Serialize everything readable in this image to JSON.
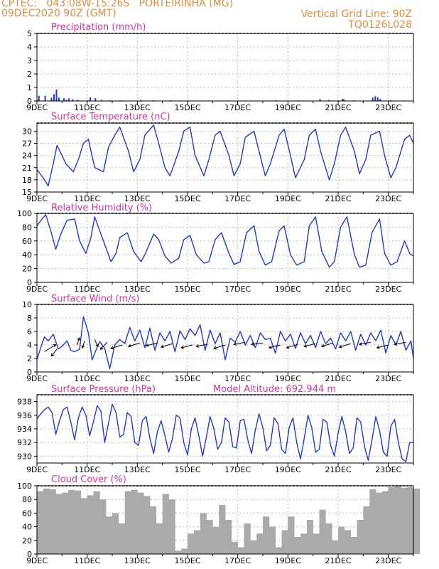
{
  "header": {
    "line1_left": "CPTEC:   043:08W-15:26S   PORTEIRINHA (MG)",
    "line2_left": "09DEC2020 90Z (GMT)",
    "line2_right": "Vertical Grid Line: 90Z",
    "line3_right": "TQ0126L028"
  },
  "colors": {
    "header": "#e98a3a",
    "title": "#e0309a",
    "series": "#1f37e0",
    "precip": "#1f37e0",
    "cloud": "#aaaaaa",
    "grid": "#b9b9b9"
  },
  "x_ticks": [
    "9DEC",
    "11DEC",
    "13DEC",
    "15DEC",
    "17DEC",
    "19DEC",
    "21DEC",
    "23DEC"
  ],
  "chart_data": [
    {
      "type": "bar",
      "title": "Precipitation (mm/h)",
      "ylim": [
        0,
        5
      ],
      "yticks": [
        0,
        1,
        2,
        3,
        4,
        5
      ],
      "x_range_days": [
        0,
        15
      ],
      "series": [
        {
          "x": [
            0.05,
            0.3,
            0.55,
            0.65,
            0.75,
            0.85,
            1.05,
            1.15,
            1.25,
            1.4,
            1.6,
            2.0,
            2.1,
            2.3,
            2.55,
            2.9,
            3.3,
            4.1,
            4.6,
            5.3,
            6.0,
            7.6,
            8.3,
            9.5,
            10.4,
            11.25,
            11.6,
            12.0,
            12.15,
            12.2,
            12.6,
            13.35,
            13.45,
            13.55,
            13.65,
            14.05,
            14.6
          ],
          "y": [
            0.38,
            0.38,
            0.25,
            0.5,
            0.85,
            0.25,
            0.2,
            0.1,
            0.2,
            0.12,
            0.08,
            0.06,
            0.28,
            0.22,
            0.1,
            0.05,
            0.05,
            0.06,
            0.05,
            0.05,
            0.04,
            0.04,
            0.04,
            0.05,
            0.05,
            0.14,
            0.08,
            0.05,
            0.16,
            0.12,
            0.05,
            0.25,
            0.35,
            0.28,
            0.15,
            0.05,
            0.04
          ]
        }
      ]
    },
    {
      "type": "line",
      "title": "Surface Temperature (nC)",
      "ylim": [
        15,
        32
      ],
      "yticks": [
        15,
        18,
        21,
        24,
        27,
        30
      ],
      "x_range_days": [
        0,
        15
      ],
      "series": [
        {
          "x": [
            0,
            0.25,
            0.45,
            0.65,
            0.8,
            1.0,
            1.15,
            1.45,
            1.65,
            1.85,
            2.05,
            2.3,
            2.65,
            2.85,
            3.1,
            3.3,
            3.65,
            3.85,
            4.1,
            4.3,
            4.65,
            4.85,
            5.1,
            5.3,
            5.65,
            5.85,
            6.1,
            6.3,
            6.65,
            6.85,
            7.1,
            7.3,
            7.65,
            7.85,
            8.1,
            8.3,
            8.65,
            8.85,
            9.1,
            9.3,
            9.65,
            9.85,
            10.1,
            10.3,
            10.65,
            10.85,
            11.1,
            11.3,
            11.65,
            11.85,
            12.1,
            12.3,
            12.65,
            12.85,
            13.1,
            13.3,
            13.65,
            13.85,
            14.1,
            14.3,
            14.65,
            14.85,
            15.0
          ],
          "y": [
            20.5,
            18.5,
            16.5,
            22,
            26.5,
            24,
            22,
            20,
            23,
            27,
            28,
            21,
            20,
            26,
            29,
            31,
            25,
            20,
            23,
            29,
            31.5,
            27,
            21,
            19,
            25,
            30,
            31,
            24,
            19,
            23,
            29,
            30,
            24,
            19,
            22,
            28.5,
            30,
            25,
            19,
            22,
            29,
            30.5,
            24,
            18.5,
            23,
            29,
            30.5,
            25,
            18,
            22,
            29,
            31,
            25,
            19.5,
            23,
            29,
            30,
            24,
            18.5,
            21,
            28,
            29,
            27
          ]
        }
      ]
    },
    {
      "type": "line",
      "title": "Relative Humidity (%)",
      "ylim": [
        0,
        100
      ],
      "yticks": [
        0,
        20,
        40,
        60,
        80,
        100
      ],
      "x_range_days": [
        0,
        15
      ],
      "series": [
        {
          "x": [
            0,
            0.2,
            0.35,
            0.55,
            0.75,
            0.95,
            1.2,
            1.5,
            1.7,
            1.95,
            2.15,
            2.3,
            2.7,
            2.95,
            3.15,
            3.3,
            3.6,
            3.85,
            4.15,
            4.3,
            4.65,
            4.85,
            5.1,
            5.35,
            5.65,
            5.85,
            6.1,
            6.35,
            6.65,
            6.85,
            7.1,
            7.35,
            7.65,
            7.85,
            8.1,
            8.35,
            8.65,
            8.85,
            9.1,
            9.35,
            9.65,
            9.85,
            10.1,
            10.35,
            10.65,
            10.85,
            11.1,
            11.35,
            11.65,
            11.85,
            12.1,
            12.35,
            12.65,
            12.85,
            13.1,
            13.35,
            13.65,
            13.85,
            14.1,
            14.35,
            14.65,
            14.85,
            15.0
          ],
          "y": [
            82,
            92,
            98,
            75,
            48,
            70,
            90,
            92,
            60,
            42,
            65,
            95,
            55,
            30,
            42,
            65,
            72,
            45,
            30,
            40,
            70,
            62,
            38,
            28,
            35,
            62,
            68,
            40,
            28,
            30,
            62,
            72,
            42,
            26,
            30,
            72,
            82,
            45,
            25,
            30,
            75,
            82,
            40,
            25,
            30,
            82,
            95,
            45,
            22,
            30,
            80,
            95,
            40,
            22,
            25,
            72,
            92,
            42,
            25,
            30,
            60,
            42,
            38
          ]
        }
      ]
    },
    {
      "type": "line",
      "title": "Surface Wind (m/s)",
      "ylim": [
        0,
        10
      ],
      "yticks": [
        0,
        2,
        4,
        6,
        8,
        10
      ],
      "x_range_days": [
        0,
        15
      ],
      "series": [
        {
          "x": [
            0,
            0.15,
            0.3,
            0.45,
            0.65,
            0.85,
            1.0,
            1.2,
            1.35,
            1.5,
            1.7,
            1.85,
            2.05,
            2.2,
            2.35,
            2.5,
            2.7,
            2.9,
            3.1,
            3.3,
            3.5,
            3.7,
            3.9,
            4.1,
            4.3,
            4.5,
            4.7,
            4.9,
            5.1,
            5.3,
            5.5,
            5.7,
            5.9,
            6.1,
            6.3,
            6.5,
            6.7,
            6.9,
            7.1,
            7.3,
            7.5,
            7.7,
            7.9,
            8.1,
            8.3,
            8.5,
            8.7,
            8.9,
            9.1,
            9.3,
            9.5,
            9.7,
            9.9,
            10.1,
            10.3,
            10.5,
            10.7,
            10.9,
            11.1,
            11.3,
            11.5,
            11.7,
            11.9,
            12.1,
            12.3,
            12.5,
            12.7,
            12.9,
            13.1,
            13.3,
            13.5,
            13.7,
            13.9,
            14.1,
            14.3,
            14.5,
            14.7,
            14.9,
            15.0
          ],
          "y": [
            1.8,
            3.6,
            5.2,
            4.6,
            5.6,
            3.4,
            3.8,
            4.6,
            3.2,
            3.0,
            3.4,
            8.2,
            5.8,
            1.8,
            3.2,
            4.5,
            3.5,
            0.5,
            4.0,
            4.8,
            4.2,
            6.6,
            4.6,
            6.2,
            3.6,
            6.5,
            3.2,
            5.8,
            4.6,
            6.0,
            3.0,
            6.1,
            4.8,
            6.4,
            5.4,
            7.0,
            3.2,
            6.2,
            4.2,
            5.8,
            1.8,
            5.0,
            4.4,
            6.0,
            4.0,
            5.4,
            3.6,
            5.8,
            4.8,
            5.0,
            2.8,
            6.0,
            4.6,
            5.6,
            3.5,
            5.8,
            4.2,
            5.4,
            3.6,
            6.0,
            4.2,
            5.0,
            3.4,
            5.8,
            4.6,
            6.0,
            3.2,
            5.6,
            4.0,
            5.8,
            4.6,
            6.2,
            2.8,
            5.4,
            4.0,
            6.0,
            3.2,
            4.6,
            2.0
          ]
        }
      ]
    },
    {
      "type": "line",
      "title": "Surface Pressure (hPa)",
      "annotation": "Model Altitude: 692.944 m",
      "ylim": [
        929,
        939
      ],
      "yticks": [
        930,
        932,
        934,
        936,
        938
      ],
      "x_range_days": [
        0,
        15
      ],
      "series": [
        {
          "x": [
            0,
            0.15,
            0.3,
            0.45,
            0.6,
            0.75,
            0.9,
            1.05,
            1.2,
            1.35,
            1.5,
            1.65,
            1.8,
            1.95,
            2.1,
            2.25,
            2.4,
            2.55,
            2.7,
            2.85,
            3.0,
            3.15,
            3.3,
            3.45,
            3.6,
            3.75,
            3.9,
            4.05,
            4.2,
            4.35,
            4.5,
            4.65,
            4.8,
            4.95,
            5.1,
            5.25,
            5.4,
            5.55,
            5.7,
            5.85,
            6.0,
            6.15,
            6.3,
            6.45,
            6.6,
            6.75,
            6.9,
            7.05,
            7.2,
            7.35,
            7.5,
            7.65,
            7.8,
            7.95,
            8.1,
            8.25,
            8.4,
            8.55,
            8.7,
            8.85,
            9.0,
            9.15,
            9.3,
            9.45,
            9.6,
            9.75,
            9.9,
            10.05,
            10.2,
            10.35,
            10.5,
            10.65,
            10.8,
            10.95,
            11.1,
            11.25,
            11.4,
            11.55,
            11.7,
            11.85,
            12.0,
            12.15,
            12.3,
            12.45,
            12.6,
            12.75,
            12.9,
            13.05,
            13.2,
            13.35,
            13.5,
            13.65,
            13.8,
            13.95,
            14.1,
            14.25,
            14.4,
            14.55,
            14.7,
            14.85,
            15.0
          ],
          "y": [
            935.5,
            936.2,
            936.8,
            937.2,
            936.4,
            933.2,
            935.2,
            936.8,
            937.2,
            935.0,
            932.4,
            935.6,
            937.2,
            936.0,
            933.0,
            935.0,
            937.4,
            936.6,
            932.0,
            934.8,
            937.6,
            936.4,
            932.8,
            933.2,
            936.4,
            935.8,
            932.0,
            931.6,
            935.2,
            935.8,
            932.6,
            930.4,
            933.6,
            935.2,
            933.0,
            930.6,
            932.6,
            936.0,
            935.6,
            932.0,
            930.2,
            934.0,
            935.6,
            933.0,
            930.0,
            932.8,
            935.8,
            934.0,
            931.0,
            932.0,
            935.6,
            935.0,
            931.4,
            931.2,
            935.2,
            935.4,
            932.4,
            930.4,
            933.8,
            936.2,
            934.2,
            930.8,
            931.6,
            935.6,
            934.8,
            931.0,
            930.4,
            934.2,
            935.6,
            932.0,
            929.6,
            932.6,
            936.0,
            934.2,
            930.6,
            931.0,
            935.4,
            935.0,
            931.6,
            930.0,
            933.4,
            935.8,
            933.6,
            930.4,
            931.2,
            935.6,
            935.0,
            931.4,
            929.4,
            932.4,
            935.8,
            933.8,
            930.6,
            930.0,
            934.4,
            935.4,
            932.0,
            929.6,
            929.2,
            932.0,
            932.0
          ]
        }
      ]
    },
    {
      "type": "bar",
      "title": "Cloud Cover (%)",
      "ylim": [
        0,
        100
      ],
      "yticks": [
        0,
        20,
        40,
        60,
        80,
        100
      ],
      "x_range_days": [
        0,
        15
      ],
      "series": [
        {
          "x": [
            0,
            0.25,
            0.5,
            0.75,
            1.0,
            1.25,
            1.5,
            1.75,
            2.0,
            2.25,
            2.5,
            2.75,
            3.0,
            3.25,
            3.5,
            3.75,
            4.0,
            4.25,
            4.5,
            4.75,
            5.0,
            5.25,
            5.5,
            5.75,
            6.0,
            6.25,
            6.5,
            6.75,
            7.0,
            7.25,
            7.5,
            7.75,
            8.0,
            8.25,
            8.5,
            8.75,
            9.0,
            9.25,
            9.5,
            9.75,
            10.0,
            10.25,
            10.5,
            10.75,
            11.0,
            11.25,
            11.5,
            11.75,
            12.0,
            12.25,
            12.5,
            12.75,
            13.0,
            13.25,
            13.5,
            13.75,
            14.0,
            14.25,
            14.5,
            14.75,
            15.0
          ],
          "y": [
            92,
            96,
            95,
            88,
            90,
            94,
            93,
            82,
            86,
            92,
            80,
            55,
            60,
            45,
            92,
            94,
            90,
            85,
            70,
            45,
            88,
            80,
            5,
            8,
            30,
            35,
            60,
            50,
            40,
            72,
            50,
            18,
            10,
            45,
            20,
            30,
            55,
            40,
            10,
            35,
            55,
            25,
            30,
            50,
            30,
            65,
            45,
            20,
            40,
            35,
            25,
            50,
            70,
            95,
            90,
            92,
            98,
            99,
            97,
            98,
            96
          ]
        }
      ]
    }
  ]
}
